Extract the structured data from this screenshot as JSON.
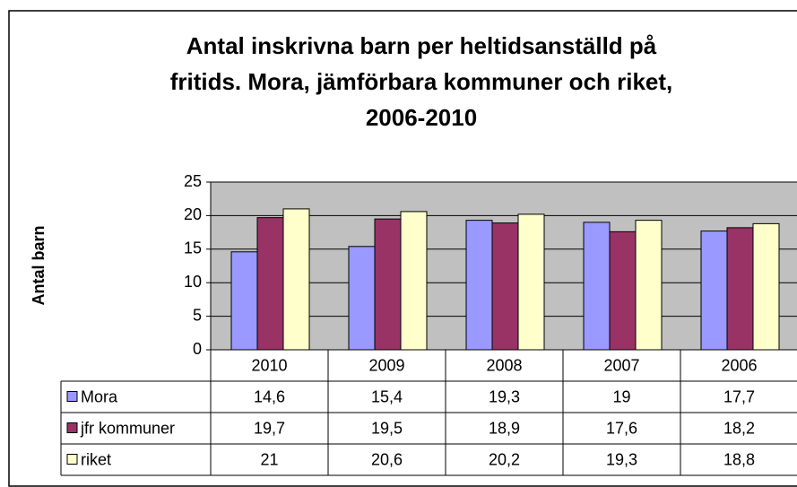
{
  "chart_data": {
    "type": "bar",
    "title": [
      "Antal inskrivna barn per heltidsanställd på",
      "fritids. Mora, jämförbara kommuner och riket,",
      "2006-2010"
    ],
    "y_label": "Antal barn",
    "categories": [
      "2010",
      "2009",
      "2008",
      "2007",
      "2006"
    ],
    "series": [
      {
        "name": "Mora",
        "color": "#9999ff",
        "values": [
          14.6,
          15.4,
          19.3,
          19,
          17.7
        ],
        "value_labels": [
          "14,6",
          "15,4",
          "19,3",
          "19",
          "17,7"
        ]
      },
      {
        "name": "jfr kommuner",
        "color": "#993366",
        "values": [
          19.7,
          19.5,
          18.9,
          17.6,
          18.2
        ],
        "value_labels": [
          "19,7",
          "19,5",
          "18,9",
          "17,6",
          "18,2"
        ]
      },
      {
        "name": "riket",
        "color": "#ffffcc",
        "values": [
          21,
          20.6,
          20.2,
          19.3,
          18.8
        ],
        "value_labels": [
          "21",
          "20,6",
          "20,2",
          "19,3",
          "18,8"
        ]
      }
    ],
    "ylim": [
      0,
      25
    ],
    "yticks": [
      0,
      5,
      10,
      15,
      20,
      25
    ],
    "grid": true
  }
}
